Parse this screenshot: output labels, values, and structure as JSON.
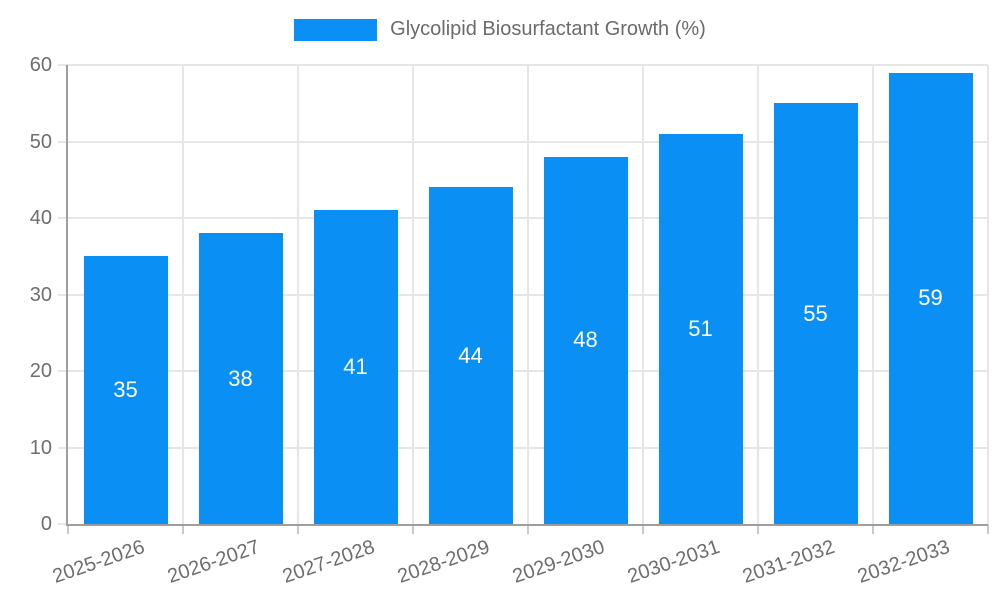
{
  "chart_data": {
    "type": "bar",
    "title": "",
    "legend": "Glycolipid Biosurfactant Growth (%)",
    "legend_position": "top",
    "categories": [
      "2025-2026",
      "2026-2027",
      "2027-2028",
      "2028-2029",
      "2029-2030",
      "2030-2031",
      "2031-2032",
      "2032-2033"
    ],
    "values": [
      35,
      38,
      41,
      44,
      48,
      51,
      55,
      59
    ],
    "xlabel": "",
    "ylabel": "",
    "ylim": [
      0,
      60
    ],
    "yticks": [
      0,
      10,
      20,
      30,
      40,
      50,
      60
    ],
    "grid": true,
    "colors": {
      "bar": "#0a90f5",
      "bar_label": "#ffffff",
      "axis_text": "#6e6e6e",
      "legend_text": "#6b6b6b",
      "gridline": "#e6e6e6",
      "axis_line": "#9e9e9e",
      "tick_mark": "#c9c9c9",
      "background": "#ffffff"
    }
  }
}
